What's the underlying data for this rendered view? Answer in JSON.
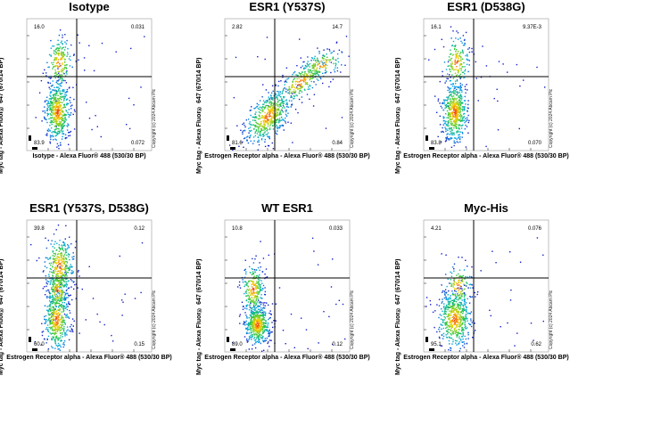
{
  "chart_data": [
    {
      "type": "scatter",
      "title": "Isotype",
      "xlabel": "Isotype - Alexa Fluor® 488 (530/30 BP)",
      "ylabel": "Myc tag - Alexa Fluor® 647 (670/14 BP)",
      "copyright": "Copyright (c) 2024 Abcam Plc",
      "quadrants": {
        "ul": "16.0",
        "ur": "0.031",
        "ll": "83.9",
        "lr": "0.072"
      },
      "population": "isotype"
    },
    {
      "type": "scatter",
      "title": "ESR1 (Y537S)",
      "xlabel": "Estrogen Receptor alpha - Alexa Fluor® 488 (530/30 BP)",
      "ylabel": "Myc tag - Alexa Fluor® 647 (670/14 BP)",
      "copyright": "Copyright (c) 2024 Abcam Plc",
      "quadrants": {
        "ul": "2.82",
        "ur": "14.7",
        "ll": "81.6",
        "lr": "0.84"
      },
      "population": "diagonal"
    },
    {
      "type": "scatter",
      "title": "ESR1 (D538G)",
      "xlabel": "Estrogen Receptor alpha - Alexa Fluor® 488 (530/30 BP)",
      "ylabel": "Myc tag - Alexa Fluor® 647 (670/14 BP)",
      "copyright": "Copyright (c) 2024 Abcam Plc",
      "quadrants": {
        "ul": "16.1",
        "ur": "9.37E-3",
        "ll": "83.8",
        "lr": "0.070"
      },
      "population": "isotype"
    },
    {
      "type": "scatter",
      "title": "ESR1 (Y537S, D538G)",
      "xlabel": "Estrogen Receptor alpha - Alexa Fluor® 488 (530/30 BP)",
      "ylabel": "Myc tag - Alexa Fluor® 647 (670/14 BP)",
      "copyright": "Copyright (c) 2024 Abcam Plc",
      "quadrants": {
        "ul": "39.8",
        "ur": "0.12",
        "ll": "60.0",
        "lr": "0.15"
      },
      "population": "bimodal-tall"
    },
    {
      "type": "scatter",
      "title": "WT ESR1",
      "xlabel": "Estrogen Receptor alpha - Alexa Fluor® 488 (530/30 BP)",
      "ylabel": "Myc tag - Alexa Fluor® 647 (670/14 BP)",
      "copyright": "Copyright (c) 2024 Abcam Plc",
      "quadrants": {
        "ul": "10.8",
        "ur": "0.033",
        "ll": "89.0",
        "lr": "0.12"
      },
      "population": "bimodal-low"
    },
    {
      "type": "scatter",
      "title": "Myc-His",
      "xlabel": "Estrogen Receptor alpha - Alexa Fluor® 488 (530/30 BP)",
      "ylabel": "Myc tag - Alexa Fluor® 647 (670/14 BP)",
      "copyright": "Copyright (c) 2024 Abcam Plc",
      "quadrants": {
        "ul": "4.21",
        "ur": "0.076",
        "ll": "95.1",
        "lr": "0.62"
      },
      "population": "single-low"
    }
  ]
}
